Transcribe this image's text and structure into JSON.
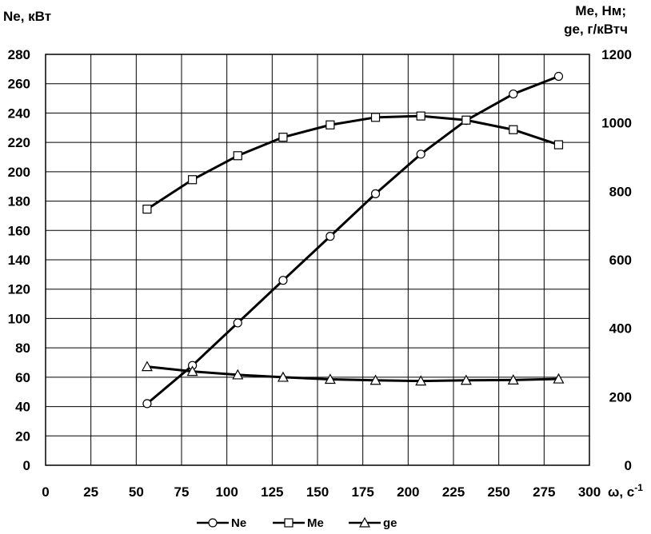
{
  "chart_data": {
    "type": "line",
    "left_axis_title": "Ne, кВт",
    "right_axis_title_line1": "Me, Нм;",
    "right_axis_title_line2": "ge,  г/кВтч",
    "x_axis_title": "ω, с",
    "x_axis_title_superscript": "-1",
    "xlim": [
      0,
      300
    ],
    "xticks": [
      0,
      25,
      50,
      75,
      100,
      125,
      150,
      175,
      200,
      225,
      250,
      275,
      300
    ],
    "ylim_left": [
      0,
      280
    ],
    "yticks_left": [
      0,
      20,
      40,
      60,
      80,
      100,
      120,
      140,
      160,
      180,
      200,
      220,
      240,
      260,
      280
    ],
    "ylim_right": [
      0,
      1200
    ],
    "yticks_right": [
      0,
      200,
      400,
      600,
      800,
      1000,
      1200
    ],
    "grid": true,
    "legend_position": "bottom-center",
    "series": [
      {
        "name": "Ne",
        "axis": "left",
        "marker": "circle",
        "x": [
          56,
          81,
          106,
          131,
          157,
          182,
          207,
          232,
          258,
          283
        ],
        "y": [
          42,
          68,
          97,
          126,
          156,
          185,
          212,
          235,
          253,
          265
        ]
      },
      {
        "name": "Me",
        "axis": "right",
        "marker": "square",
        "x": [
          56,
          81,
          106,
          131,
          157,
          182,
          207,
          232,
          258,
          283
        ],
        "y": [
          748,
          834,
          904,
          958,
          994,
          1016,
          1020,
          1008,
          980,
          936
        ]
      },
      {
        "name": "ge",
        "axis": "right",
        "marker": "triangle",
        "x": [
          56,
          81,
          106,
          131,
          157,
          182,
          207,
          232,
          258,
          283
        ],
        "y": [
          288,
          274,
          264,
          257,
          251,
          248,
          246,
          248,
          249,
          252
        ]
      }
    ]
  }
}
